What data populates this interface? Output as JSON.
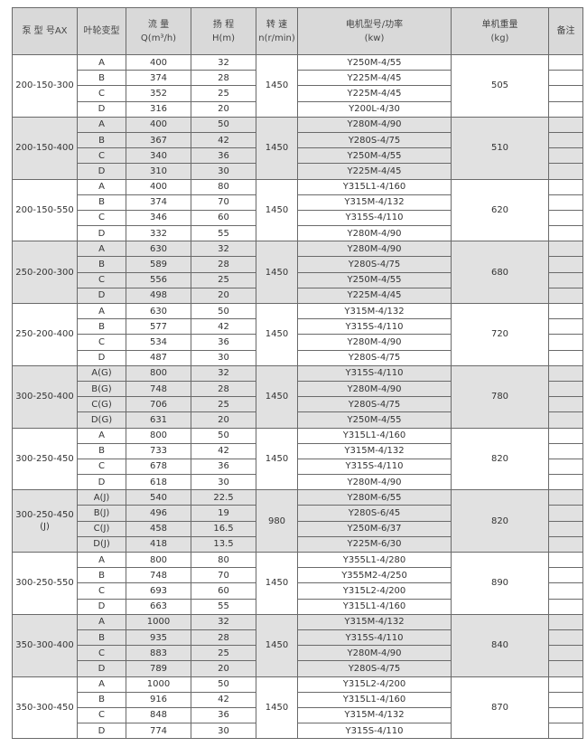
{
  "headers": [
    "泵 型 号AX",
    "叶轮变型",
    "流 量\nQ(m³/h)",
    "扬 程\nH(m)",
    "转 速\nn(r/min)",
    "电机型号/功率\n(kw)",
    "单机重量\n(kg)",
    "备注"
  ],
  "shading": {
    "gray": "#e1e1e1",
    "white": "#ffffff",
    "header": "#d9d9d9"
  },
  "groups": [
    {
      "model": "200-150-300",
      "speed": "1450",
      "weight": "505",
      "rows": [
        [
          "A",
          "400",
          "32",
          "Y250M-4/55"
        ],
        [
          "B",
          "374",
          "28",
          "Y225M-4/45"
        ],
        [
          "C",
          "352",
          "25",
          "Y225M-4/45"
        ],
        [
          "D",
          "316",
          "20",
          "Y200L-4/30"
        ]
      ]
    },
    {
      "model": "200-150-400",
      "speed": "1450",
      "weight": "510",
      "rows": [
        [
          "A",
          "400",
          "50",
          "Y280M-4/90"
        ],
        [
          "B",
          "367",
          "42",
          "Y280S-4/75"
        ],
        [
          "C",
          "340",
          "36",
          "Y250M-4/55"
        ],
        [
          "D",
          "310",
          "30",
          "Y225M-4/45"
        ]
      ]
    },
    {
      "model": "200-150-550",
      "speed": "1450",
      "weight": "620",
      "rows": [
        [
          "A",
          "400",
          "80",
          "Y315L1-4/160"
        ],
        [
          "B",
          "374",
          "70",
          "Y315M-4/132"
        ],
        [
          "C",
          "346",
          "60",
          "Y315S-4/110"
        ],
        [
          "D",
          "332",
          "55",
          "Y280M-4/90"
        ]
      ]
    },
    {
      "model": "250-200-300",
      "speed": "1450",
      "weight": "680",
      "rows": [
        [
          "A",
          "630",
          "32",
          "Y280M-4/90"
        ],
        [
          "B",
          "589",
          "28",
          "Y280S-4/75"
        ],
        [
          "C",
          "556",
          "25",
          "Y250M-4/55"
        ],
        [
          "D",
          "498",
          "20",
          "Y225M-4/45"
        ]
      ]
    },
    {
      "model": "250-200-400",
      "speed": "1450",
      "weight": "720",
      "rows": [
        [
          "A",
          "630",
          "50",
          "Y315M-4/132"
        ],
        [
          "B",
          "577",
          "42",
          "Y315S-4/110"
        ],
        [
          "C",
          "534",
          "36",
          "Y280M-4/90"
        ],
        [
          "D",
          "487",
          "30",
          "Y280S-4/75"
        ]
      ]
    },
    {
      "model": "300-250-400",
      "speed": "1450",
      "weight": "780",
      "rows": [
        [
          "A(G)",
          "800",
          "32",
          "Y315S-4/110"
        ],
        [
          "B(G)",
          "748",
          "28",
          "Y280M-4/90"
        ],
        [
          "C(G)",
          "706",
          "25",
          "Y280S-4/75"
        ],
        [
          "D(G)",
          "631",
          "20",
          "Y250M-4/55"
        ]
      ]
    },
    {
      "model": "300-250-450",
      "speed": "1450",
      "weight": "820",
      "rows": [
        [
          "A",
          "800",
          "50",
          "Y315L1-4/160"
        ],
        [
          "B",
          "733",
          "42",
          "Y315M-4/132"
        ],
        [
          "C",
          "678",
          "36",
          "Y315S-4/110"
        ],
        [
          "D",
          "618",
          "30",
          "Y280M-4/90"
        ]
      ]
    },
    {
      "model": "300-250-450\n(J)",
      "speed": "980",
      "weight": "820",
      "rows": [
        [
          "A(J)",
          "540",
          "22.5",
          "Y280M-6/55"
        ],
        [
          "B(J)",
          "496",
          "19",
          "Y280S-6/45"
        ],
        [
          "C(J)",
          "458",
          "16.5",
          "Y250M-6/37"
        ],
        [
          "D(J)",
          "418",
          "13.5",
          "Y225M-6/30"
        ]
      ]
    },
    {
      "model": "300-250-550",
      "speed": "1450",
      "weight": "890",
      "rows": [
        [
          "A",
          "800",
          "80",
          "Y355L1-4/280"
        ],
        [
          "B",
          "748",
          "70",
          "Y355M2-4/250"
        ],
        [
          "C",
          "693",
          "60",
          "Y315L2-4/200"
        ],
        [
          "D",
          "663",
          "55",
          "Y315L1-4/160"
        ]
      ]
    },
    {
      "model": "350-300-400",
      "speed": "1450",
      "weight": "840",
      "rows": [
        [
          "A",
          "1000",
          "32",
          "Y315M-4/132"
        ],
        [
          "B",
          "935",
          "28",
          "Y315S-4/110"
        ],
        [
          "C",
          "883",
          "25",
          "Y280M-4/90"
        ],
        [
          "D",
          "789",
          "20",
          "Y280S-4/75"
        ]
      ]
    },
    {
      "model": "350-300-450",
      "speed": "1450",
      "weight": "870",
      "rows": [
        [
          "A",
          "1000",
          "50",
          "Y315L2-4/200"
        ],
        [
          "B",
          "916",
          "42",
          "Y315L1-4/160"
        ],
        [
          "C",
          "848",
          "36",
          "Y315M-4/132"
        ],
        [
          "D",
          "774",
          "30",
          "Y315S-4/110"
        ]
      ]
    }
  ]
}
